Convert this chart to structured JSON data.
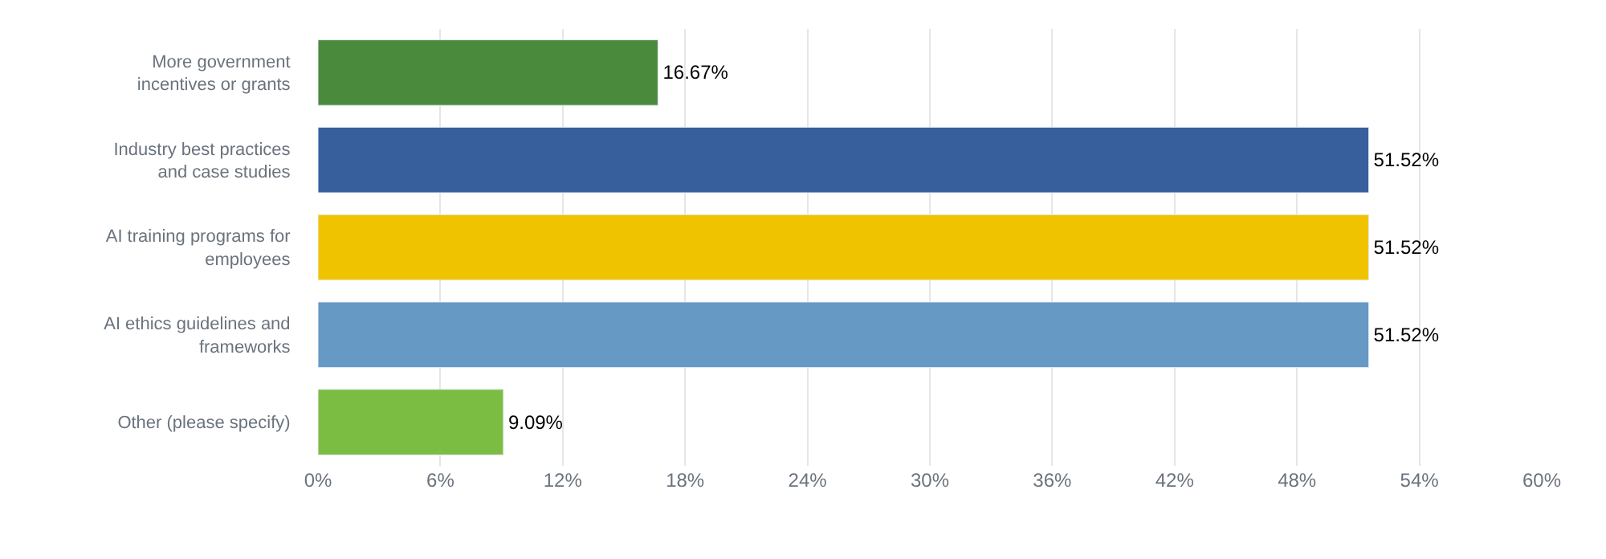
{
  "chart_data": {
    "type": "bar",
    "orientation": "horizontal",
    "categories": [
      "More government incentives or grants",
      "Industry best practices and case studies",
      "AI training programs for employees",
      "AI ethics guidelines and frameworks",
      "Other (please specify)"
    ],
    "values": [
      16.67,
      51.52,
      51.52,
      51.52,
      9.09
    ],
    "colors": [
      "#4a8a3c",
      "#365f9c",
      "#f0c300",
      "#6699c4",
      "#7bbd42"
    ],
    "value_labels": [
      "16.67%",
      "51.52%",
      "51.52%",
      "51.52%",
      "9.09%"
    ],
    "xlim": [
      0,
      60
    ],
    "xticks": [
      {
        "value": 0,
        "label": "0%"
      },
      {
        "value": 6,
        "label": "6%"
      },
      {
        "value": 12,
        "label": "12%"
      },
      {
        "value": 18,
        "label": "18%"
      },
      {
        "value": 24,
        "label": "24%"
      },
      {
        "value": 30,
        "label": "30%"
      },
      {
        "value": 36,
        "label": "36%"
      },
      {
        "value": 42,
        "label": "42%"
      },
      {
        "value": 48,
        "label": "48%"
      },
      {
        "value": 54,
        "label": "54%"
      },
      {
        "value": 60,
        "label": "60%"
      }
    ],
    "grid": "x"
  }
}
